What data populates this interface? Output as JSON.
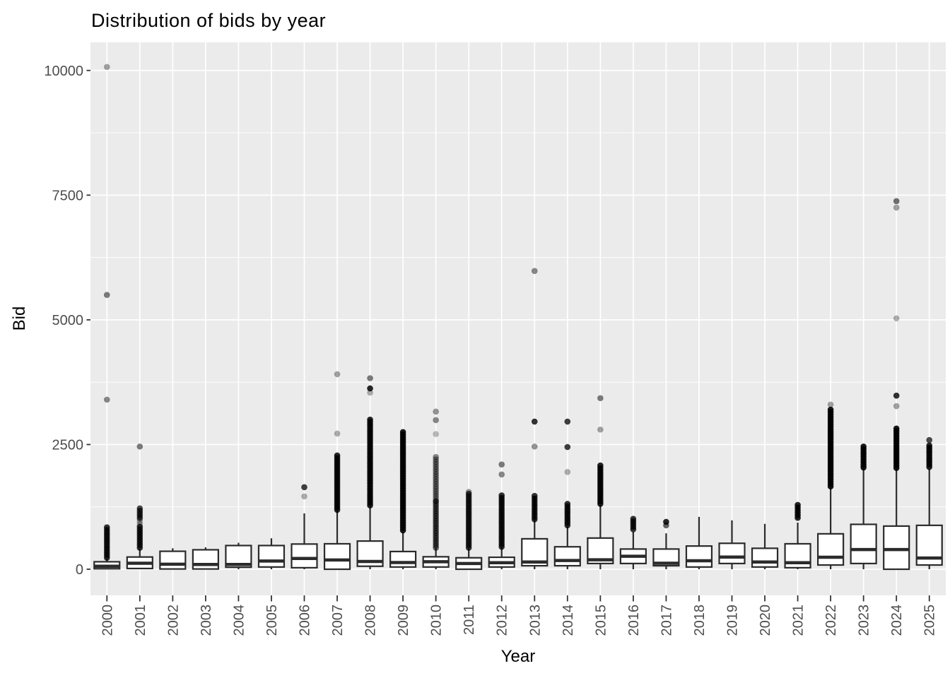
{
  "chart_data": {
    "type": "boxplot",
    "title": "Distribution of bids by year",
    "xlabel": "Year",
    "ylabel": "Bid",
    "legend": "none",
    "grid": true,
    "y_ticks": [
      0,
      2500,
      5000,
      7500,
      10000
    ],
    "y_minor": [
      1250,
      3750,
      6250,
      8750
    ],
    "ylim_panel": [
      -524,
      10563
    ],
    "colors": {
      "panel_bg": "#EBEBEB",
      "grid": "#FFFFFF",
      "box_stroke": "#2B2B2B",
      "box_fill": "#FFFFFF",
      "outlier": "#000000",
      "tick_text": "#4D4D4D",
      "title_text": "#000000"
    },
    "categories": [
      "2000",
      "2001",
      "2002",
      "2003",
      "2004",
      "2005",
      "2006",
      "2007",
      "2008",
      "2009",
      "2010",
      "2011",
      "2012",
      "2013",
      "2014",
      "2015",
      "2016",
      "2017",
      "2018",
      "2019",
      "2020",
      "2021",
      "2022",
      "2023",
      "2024",
      "2025"
    ],
    "series": [
      {
        "year": "2000",
        "low": 0,
        "q1": 10,
        "median": 60,
        "q3": 150,
        "high": 210,
        "clusters": [
          [
            230,
            840,
            0.8
          ]
        ],
        "points": [
          [
            3400,
            0.45
          ],
          [
            5500,
            0.5
          ],
          [
            10070,
            0.35
          ]
        ]
      },
      {
        "year": "2001",
        "low": 0,
        "q1": 15,
        "median": 120,
        "q3": 245,
        "high": 410,
        "clusters": [
          [
            430,
            850,
            0.8
          ],
          [
            900,
            1000,
            0.3
          ],
          [
            1030,
            1220,
            0.7
          ]
        ],
        "points": [
          [
            2460,
            0.5
          ]
        ]
      },
      {
        "year": "2002",
        "low": 0,
        "q1": 5,
        "median": 100,
        "q3": 360,
        "high": 420,
        "clusters": [],
        "points": []
      },
      {
        "year": "2003",
        "low": 0,
        "q1": 5,
        "median": 95,
        "q3": 390,
        "high": 440,
        "clusters": [],
        "points": []
      },
      {
        "year": "2004",
        "low": 0,
        "q1": 40,
        "median": 95,
        "q3": 475,
        "high": 530,
        "clusters": [],
        "points": []
      },
      {
        "year": "2005",
        "low": 0,
        "q1": 45,
        "median": 165,
        "q3": 475,
        "high": 620,
        "clusters": [],
        "points": []
      },
      {
        "year": "2006",
        "low": 0,
        "q1": 30,
        "median": 215,
        "q3": 505,
        "high": 1120,
        "clusters": [],
        "points": [
          [
            1460,
            0.3
          ],
          [
            1645,
            0.75
          ]
        ]
      },
      {
        "year": "2007",
        "low": 0,
        "q1": 0,
        "median": 185,
        "q3": 510,
        "high": 1175,
        "clusters": [
          [
            1190,
            2280,
            0.85
          ]
        ],
        "points": [
          [
            2720,
            0.3
          ],
          [
            3910,
            0.35
          ]
        ]
      },
      {
        "year": "2008",
        "low": 0,
        "q1": 60,
        "median": 155,
        "q3": 565,
        "high": 1265,
        "clusters": [
          [
            1280,
            3000,
            0.85
          ]
        ],
        "points": [
          [
            3540,
            0.3
          ],
          [
            3625,
            0.85
          ],
          [
            3830,
            0.5
          ]
        ]
      },
      {
        "year": "2009",
        "low": 0,
        "q1": 45,
        "median": 135,
        "q3": 355,
        "high": 750,
        "clusters": [
          [
            780,
            2750,
            0.9
          ]
        ],
        "points": []
      },
      {
        "year": "2010",
        "low": 0,
        "q1": 45,
        "median": 150,
        "q3": 250,
        "high": 420,
        "clusters": [
          [
            430,
            1360,
            0.6
          ],
          [
            1370,
            2250,
            0.45
          ]
        ],
        "points": [
          [
            2710,
            0.25
          ],
          [
            2990,
            0.45
          ],
          [
            3160,
            0.4
          ]
        ]
      },
      {
        "year": "2011",
        "low": 0,
        "q1": 0,
        "median": 115,
        "q3": 230,
        "high": 420,
        "clusters": [
          [
            430,
            1510,
            0.75
          ]
        ],
        "points": [
          [
            1550,
            0.4
          ]
        ]
      },
      {
        "year": "2012",
        "low": 0,
        "q1": 45,
        "median": 130,
        "q3": 240,
        "high": 440,
        "clusters": [
          [
            450,
            1480,
            0.8
          ]
        ],
        "points": [
          [
            1900,
            0.45
          ],
          [
            2100,
            0.5
          ]
        ]
      },
      {
        "year": "2013",
        "low": 0,
        "q1": 70,
        "median": 145,
        "q3": 610,
        "high": 1470,
        "clusters": [
          [
            1000,
            1470,
            0.8
          ]
        ],
        "points": [
          [
            2460,
            0.4
          ],
          [
            2960,
            0.8
          ],
          [
            5980,
            0.45
          ]
        ]
      },
      {
        "year": "2014",
        "low": 0,
        "q1": 70,
        "median": 175,
        "q3": 450,
        "high": 860,
        "clusters": [
          [
            880,
            1310,
            0.8
          ]
        ],
        "points": [
          [
            1950,
            0.3
          ],
          [
            2450,
            0.75
          ],
          [
            2960,
            0.75
          ]
        ]
      },
      {
        "year": "2015",
        "low": 0,
        "q1": 115,
        "median": 190,
        "q3": 625,
        "high": 1290,
        "clusters": [
          [
            1310,
            2080,
            0.85
          ]
        ],
        "points": [
          [
            2800,
            0.35
          ],
          [
            3430,
            0.5
          ]
        ]
      },
      {
        "year": "2016",
        "low": 0,
        "q1": 115,
        "median": 260,
        "q3": 405,
        "high": 750,
        "clusters": [
          [
            800,
            1010,
            0.8
          ]
        ],
        "points": []
      },
      {
        "year": "2017",
        "low": 0,
        "q1": 70,
        "median": 120,
        "q3": 405,
        "high": 720,
        "clusters": [],
        "points": [
          [
            880,
            0.6
          ],
          [
            950,
            0.85
          ]
        ]
      },
      {
        "year": "2018",
        "low": 0,
        "q1": 45,
        "median": 170,
        "q3": 465,
        "high": 1050,
        "clusters": [],
        "points": []
      },
      {
        "year": "2019",
        "low": 0,
        "q1": 115,
        "median": 245,
        "q3": 520,
        "high": 980,
        "clusters": [],
        "points": []
      },
      {
        "year": "2020",
        "low": 0,
        "q1": 45,
        "median": 145,
        "q3": 420,
        "high": 910,
        "clusters": [],
        "points": []
      },
      {
        "year": "2021",
        "low": 0,
        "q1": 30,
        "median": 130,
        "q3": 510,
        "high": 935,
        "clusters": [
          [
            1030,
            1290,
            0.85
          ]
        ],
        "points": []
      },
      {
        "year": "2022",
        "low": 0,
        "q1": 85,
        "median": 240,
        "q3": 710,
        "high": 1640,
        "clusters": [
          [
            1660,
            3200,
            0.9
          ]
        ],
        "points": [
          [
            3300,
            0.35
          ]
        ]
      },
      {
        "year": "2023",
        "low": 0,
        "q1": 115,
        "median": 395,
        "q3": 900,
        "high": 2020,
        "clusters": [
          [
            2040,
            2460,
            0.9
          ]
        ],
        "points": []
      },
      {
        "year": "2024",
        "low": 0,
        "q1": 0,
        "median": 395,
        "q3": 865,
        "high": 2010,
        "clusters": [
          [
            2030,
            2820,
            0.9
          ]
        ],
        "points": [
          [
            3270,
            0.35
          ],
          [
            3480,
            0.8
          ],
          [
            5030,
            0.3
          ],
          [
            7250,
            0.35
          ],
          [
            7380,
            0.55
          ]
        ]
      },
      {
        "year": "2025",
        "low": 0,
        "q1": 85,
        "median": 225,
        "q3": 880,
        "high": 2020,
        "clusters": [
          [
            2050,
            2480,
            0.85
          ]
        ],
        "points": [
          [
            2590,
            0.7
          ]
        ]
      }
    ]
  }
}
